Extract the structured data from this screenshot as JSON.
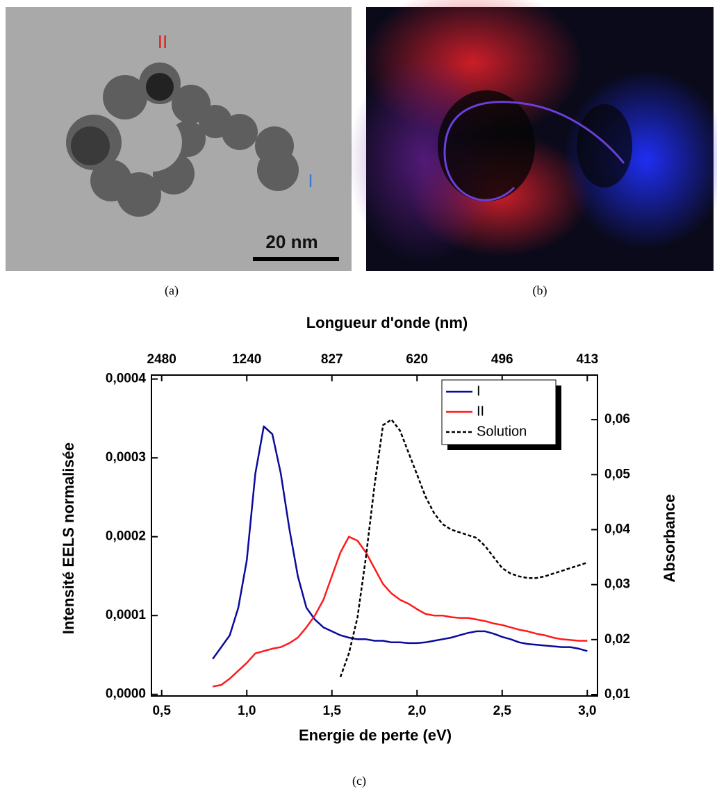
{
  "images": [
    {
      "caption": "(a)",
      "labels": [
        "II",
        "I"
      ],
      "scale_bar": "20 nm"
    },
    {
      "caption": "(b)"
    }
  ],
  "caption": "(c)",
  "chart_data": {
    "type": "line",
    "xlabel": "Energie de perte (eV)",
    "x2label": "Longueur d'onde (nm)",
    "ylabel": "Intensité EELS normalisée",
    "y2label": "Absorbance",
    "x": [
      0.8,
      0.85,
      0.9,
      0.95,
      1.0,
      1.05,
      1.1,
      1.15,
      1.2,
      1.25,
      1.3,
      1.35,
      1.4,
      1.45,
      1.5,
      1.55,
      1.6,
      1.65,
      1.7,
      1.75,
      1.8,
      1.85,
      1.9,
      1.95,
      2.0,
      2.05,
      2.1,
      2.15,
      2.2,
      2.25,
      2.3,
      2.35,
      2.4,
      2.45,
      2.5,
      2.55,
      2.6,
      2.65,
      2.7,
      2.75,
      2.8,
      2.85,
      2.9,
      2.95,
      3.0
    ],
    "series": [
      {
        "name": "I",
        "color": "#0a0a9c",
        "values": [
          4.5e-05,
          6e-05,
          7.5e-05,
          0.00011,
          0.00017,
          0.00028,
          0.00034,
          0.00033,
          0.00028,
          0.00021,
          0.00015,
          0.00011,
          9.5e-05,
          8.5e-05,
          8e-05,
          7.5e-05,
          7.2e-05,
          7e-05,
          7e-05,
          6.8e-05,
          6.8e-05,
          6.6e-05,
          6.6e-05,
          6.5e-05,
          6.5e-05,
          6.6e-05,
          6.8e-05,
          7e-05,
          7.2e-05,
          7.5e-05,
          7.8e-05,
          8e-05,
          8e-05,
          7.7e-05,
          7.3e-05,
          7e-05,
          6.6e-05,
          6.4e-05,
          6.3e-05,
          6.2e-05,
          6.1e-05,
          6e-05,
          6e-05,
          5.8e-05,
          5.5e-05
        ]
      },
      {
        "name": "II",
        "color": "#ff1a1a",
        "values": [
          1e-05,
          1.2e-05,
          2e-05,
          3e-05,
          4e-05,
          5.2e-05,
          5.5e-05,
          5.8e-05,
          6e-05,
          6.5e-05,
          7.2e-05,
          8.5e-05,
          0.0001,
          0.00012,
          0.00015,
          0.00018,
          0.0002,
          0.000195,
          0.00018,
          0.00016,
          0.00014,
          0.000128,
          0.00012,
          0.000115,
          0.000108,
          0.000102,
          0.0001,
          0.0001,
          9.8e-05,
          9.7e-05,
          9.7e-05,
          9.5e-05,
          9.3e-05,
          9e-05,
          8.8e-05,
          8.5e-05,
          8.2e-05,
          8e-05,
          7.7e-05,
          7.5e-05,
          7.2e-05,
          7e-05,
          6.9e-05,
          6.8e-05,
          6.8e-05
        ]
      },
      {
        "name": "Solution",
        "color": "#000000",
        "style": "dashed",
        "axis": "y2",
        "values": [
          null,
          null,
          null,
          null,
          null,
          null,
          null,
          null,
          null,
          null,
          null,
          null,
          null,
          null,
          null,
          0.0132,
          0.0175,
          0.024,
          0.035,
          0.048,
          0.059,
          0.06,
          0.058,
          0.054,
          0.05,
          0.046,
          0.043,
          0.041,
          0.04,
          0.0395,
          0.039,
          0.0385,
          0.037,
          0.035,
          0.033,
          0.032,
          0.0315,
          0.0312,
          0.0312,
          0.0315,
          0.032,
          0.0325,
          0.033,
          0.0335,
          0.034
        ]
      }
    ],
    "xlim": [
      0.44,
      3.06
    ],
    "xticks": [
      {
        "value": 0.5,
        "label": "0,5"
      },
      {
        "value": 1.0,
        "label": "1,0"
      },
      {
        "value": 1.5,
        "label": "1,5"
      },
      {
        "value": 2.0,
        "label": "2,0"
      },
      {
        "value": 2.5,
        "label": "2,5"
      },
      {
        "value": 3.0,
        "label": "3,0"
      }
    ],
    "x2ticks": [
      {
        "value": 0.5,
        "label": "2480"
      },
      {
        "value": 1.0,
        "label": "1240"
      },
      {
        "value": 1.5,
        "label": "827"
      },
      {
        "value": 2.0,
        "label": "620"
      },
      {
        "value": 2.5,
        "label": "496"
      },
      {
        "value": 3.0,
        "label": "413"
      }
    ],
    "ylim": [
      -2e-06,
      0.000405
    ],
    "yticks": [
      {
        "value": 0,
        "label": "0,0000"
      },
      {
        "value": 0.0001,
        "label": "0,0001"
      },
      {
        "value": 0.0002,
        "label": "0,0002"
      },
      {
        "value": 0.0003,
        "label": "0,0003"
      },
      {
        "value": 0.0004,
        "label": "0,0004"
      }
    ],
    "y2lim": [
      0.00975,
      0.0681
    ],
    "y2ticks": [
      {
        "value": 0.01,
        "label": "0,01"
      },
      {
        "value": 0.02,
        "label": "0,02"
      },
      {
        "value": 0.03,
        "label": "0,03"
      },
      {
        "value": 0.04,
        "label": "0,04"
      },
      {
        "value": 0.05,
        "label": "0,05"
      },
      {
        "value": 0.06,
        "label": "0,06"
      }
    ],
    "legend": "top-right"
  }
}
